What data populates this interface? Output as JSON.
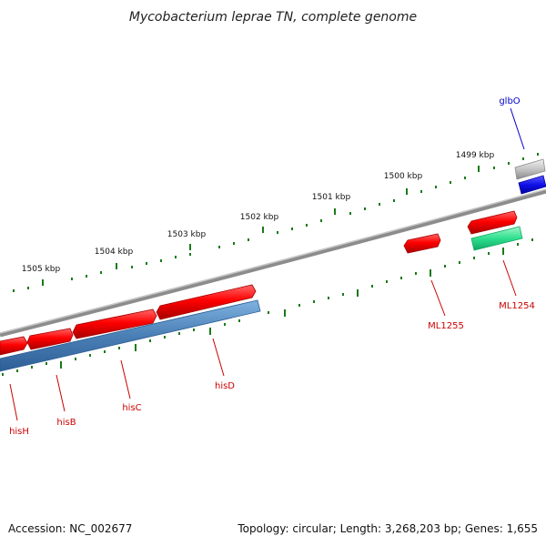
{
  "title": "Mycobacterium leprae TN, complete genome",
  "footer": {
    "accession": "Accession: NC_002677",
    "stats": "Topology: circular; Length: 3,268,203 bp; Genes: 1,655"
  },
  "ruler": {
    "labels": [
      "1505 kbp",
      "1504 kbp",
      "1503 kbp",
      "1502 kbp",
      "1501 kbp",
      "1500 kbp",
      "1499 kbp"
    ]
  },
  "genes": [
    {
      "name": "hisH",
      "strand": "forward",
      "color": "#e31a1c"
    },
    {
      "name": "hisB",
      "strand": "forward",
      "color": "#e31a1c"
    },
    {
      "name": "hisC",
      "strand": "forward",
      "color": "#e31a1c"
    },
    {
      "name": "hisD",
      "strand": "forward",
      "color": "#e31a1c"
    },
    {
      "name": "ML1255",
      "strand": "forward",
      "color": "#e31a1c"
    },
    {
      "name": "ML1254",
      "strand": "forward",
      "color": "#e31a1c"
    },
    {
      "name": "glbO",
      "strand": "forward",
      "color": "#1010e8"
    }
  ],
  "colors": {
    "gene_red": "#e31a1c",
    "label_red": "#cc0000",
    "label_blue": "#0000cc",
    "operon_blue": "#4a7fb5",
    "misc_green": "#2ee08f",
    "backbone_grey": "#8c8c8c",
    "tick_green": "#1a7a1a",
    "glbO_blue": "#1010e8"
  }
}
